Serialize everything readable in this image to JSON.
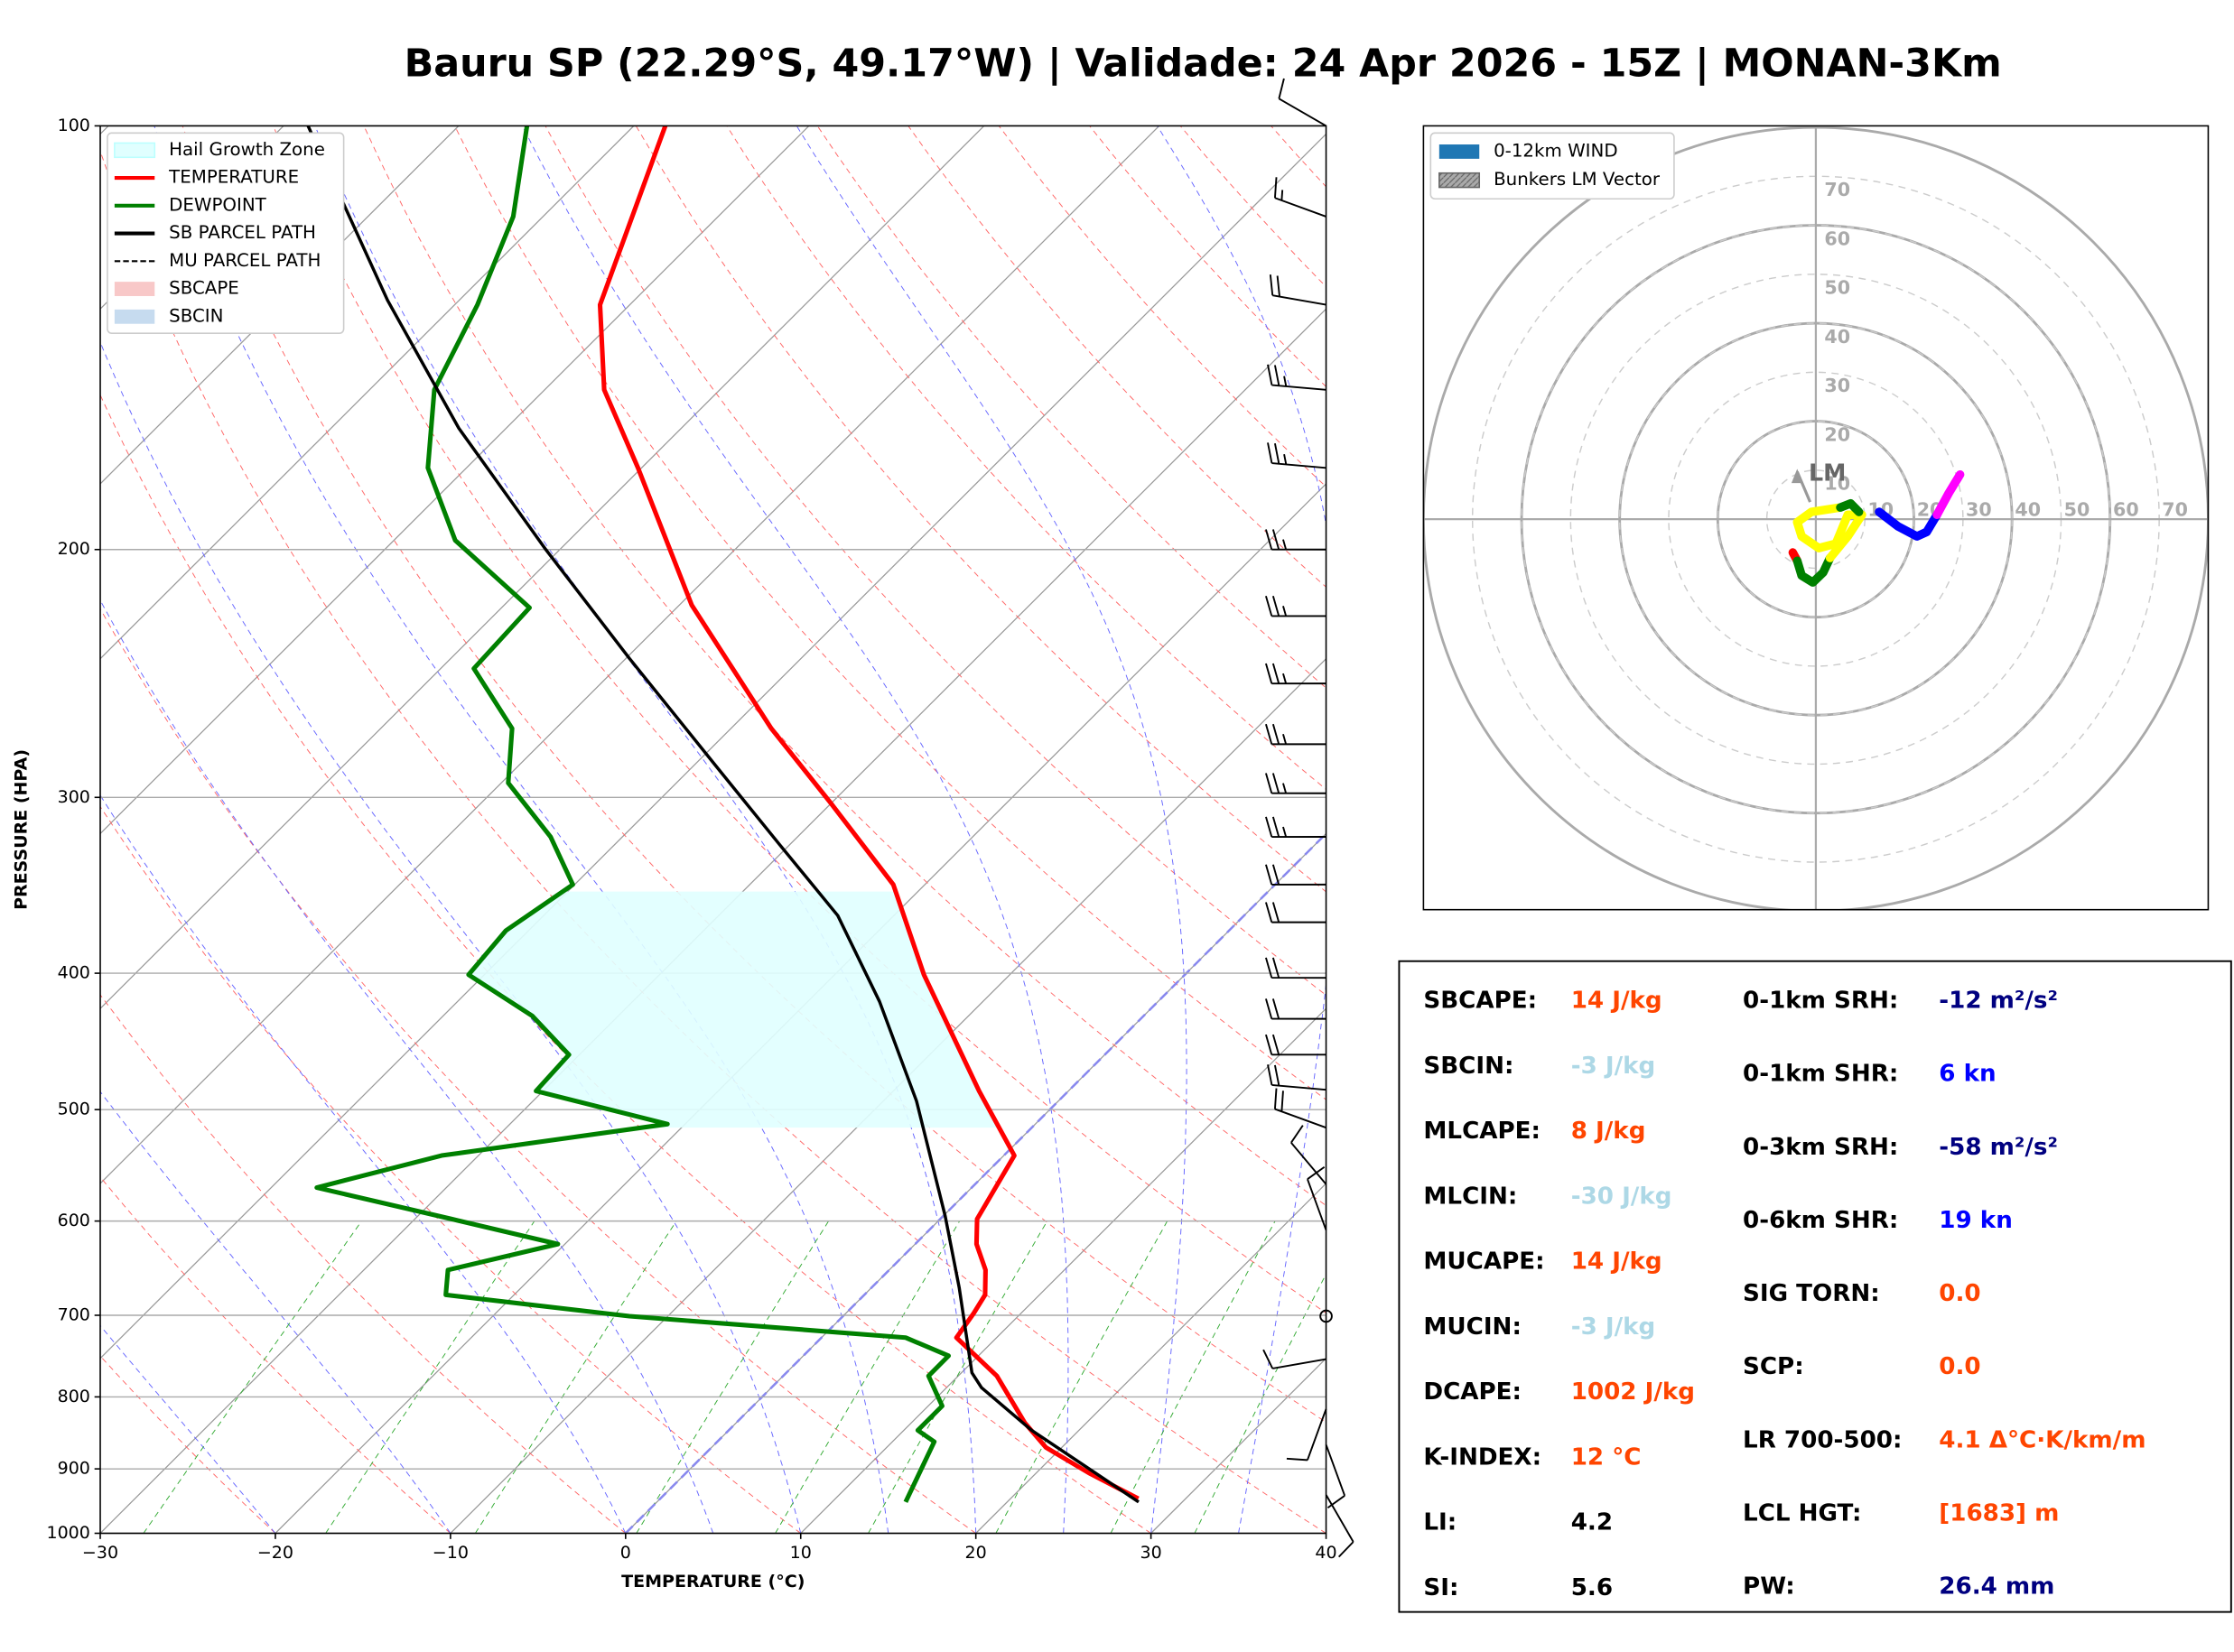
{
  "chart_data": [
    {
      "type": "skewt",
      "title": "Bauru SP (22.29°S, 49.17°W) | Validade: 24 Apr 2026 - 15Z | MONAN-3Km",
      "xlabel": "TEMPERATURE (°C)",
      "ylabel": "PRESSURE (HPA)",
      "xlim": [
        -30,
        40
      ],
      "ylim": [
        1000,
        100
      ],
      "log_scale": true,
      "grid": true,
      "legend": "upper left",
      "xticks": [
        {
          "value": -30,
          "label": "−30"
        },
        {
          "value": -20,
          "label": "−20"
        },
        {
          "value": -10,
          "label": "−10"
        },
        0,
        10,
        20,
        30,
        40
      ],
      "yticks": [
        100,
        200,
        300,
        400,
        500,
        600,
        700,
        800,
        900,
        1000
      ],
      "series": [
        {
          "name": "Hail Growth Zone",
          "color": "#e0ffff",
          "style": "fill",
          "pressure_range": [
            515,
            350
          ]
        },
        {
          "name": "TEMPERATURE",
          "color": "#ff0000",
          "style": "line",
          "pressure": [
            945,
            906,
            869,
            835,
            773,
            726,
            698,
            677,
            650,
            623,
            598,
            539,
            485,
            401,
            346,
            303,
            268,
            219,
            175,
            154,
            134,
            100
          ],
          "temperature": [
            27.3,
            23.0,
            19.1,
            16.5,
            12.2,
            7.7,
            7.3,
            6.9,
            5.5,
            3.5,
            2.1,
            0.6,
            -5.1,
            -14.9,
            -21.8,
            -30,
            -37.7,
            -49.3,
            -60.2,
            -66.6,
            -71.7,
            -78.2
          ]
        },
        {
          "name": "DEWPOINT",
          "color": "#008000",
          "style": "line",
          "pressure": [
            950,
            861,
            845,
            812,
            773,
            748,
            726,
            701,
            677,
            650,
            623,
            598,
            568,
            539,
            512,
            485,
            457,
            429,
            401,
            373,
            346,
            320,
            293,
            268,
            243,
            220,
            197,
            175,
            154,
            134,
            116,
            100
          ],
          "temperature": [
            14.2,
            12.4,
            10.8,
            10.8,
            8.3,
            8.3,
            4.8,
            -12.2,
            -23.9,
            -25.2,
            -20.4,
            -27.9,
            -37.4,
            -32.1,
            -21.0,
            -30.4,
            -30.6,
            -34.9,
            -40.9,
            -41.3,
            -40.1,
            -44.1,
            -49.6,
            -52.5,
            -58.1,
            -58.4,
            -66.5,
            -72.2,
            -76.3,
            -78.7,
            -81.7,
            -86.1
          ]
        },
        {
          "name": "SB PARCEL PATH",
          "color": "#000000",
          "style": "line",
          "pressure": [
            950,
            845,
            788,
            769,
            669,
            595,
            493,
            419,
            364,
            324,
            285,
            239,
            200,
            164,
            133,
            100
          ],
          "temperature": [
            27.5,
            17.3,
            12.0,
            10.6,
            5.0,
            0.1,
            -8.1,
            -15.9,
            -23.2,
            -30.6,
            -38.7,
            -49.8,
            -60.8,
            -72.7,
            -84.1,
            -98.6
          ]
        },
        {
          "name": "MU PARCEL PATH",
          "color": "#000000",
          "style": "dashed"
        },
        {
          "name": "SBCAPE",
          "color": "#f8c8c8",
          "style": "fill"
        },
        {
          "name": "SBCIN",
          "color": "#c6dbef",
          "style": "fill"
        }
      ],
      "wind_barbs": {
        "pressure": [
          100,
          116,
          134,
          154,
          175,
          200,
          223,
          249,
          275,
          298,
          320,
          346,
          368,
          403,
          431,
          457,
          484,
          515,
          565,
          609,
          701,
          752,
          816,
          865,
          939
        ],
        "speed": [
          10,
          15,
          20,
          25,
          25,
          25,
          25,
          25,
          25,
          25,
          25,
          20,
          20,
          20,
          20,
          20,
          20,
          20,
          10,
          10,
          0,
          10,
          10,
          10,
          10
        ],
        "direction": [
          300,
          290,
          280,
          275,
          275,
          270,
          270,
          270,
          270,
          270,
          270,
          270,
          270,
          270,
          270,
          270,
          275,
          290,
          320,
          340,
          0,
          260,
          200,
          160,
          150
        ]
      }
    },
    {
      "type": "hodograph",
      "rlim": [
        0,
        80
      ],
      "rticks": [
        10,
        20,
        30,
        40,
        50,
        60,
        70
      ],
      "legend": [
        {
          "name": "0-12km WIND",
          "color": "#1f77b4"
        },
        {
          "name": "Bunkers LM Vector",
          "color": "#aaaaaa"
        }
      ],
      "series": [
        {
          "color": "#ff0000",
          "u": [
            -4.7,
            -3.8
          ],
          "v": [
            -6.8,
            -8.5
          ]
        },
        {
          "color": "#008000",
          "u": [
            -3.8,
            -2.9,
            -0.6,
            1.5,
            2.9
          ],
          "v": [
            -8.5,
            -11.5,
            -12.9,
            -10.9,
            -7.9
          ]
        },
        {
          "color": "#ffff00",
          "u": [
            2.9,
            6.5,
            9.4,
            6.5,
            4.1,
            0.6,
            -2.9,
            -3.8,
            -0.9,
            5.0
          ],
          "v": [
            -7.9,
            -3.5,
            0.9,
            0.9,
            -5.0,
            -5.9,
            -3.5,
            -0.6,
            1.5,
            2.4
          ]
        },
        {
          "color": "#008000",
          "u": [
            5.0,
            7.1,
            8.8
          ],
          "v": [
            2.4,
            3.2,
            1.5
          ]
        },
        {
          "color": "#0000ff",
          "u": [
            12.9,
            16.8,
            20.6,
            22.6,
            24.7
          ],
          "v": [
            1.5,
            -1.5,
            -3.5,
            -2.6,
            0.9
          ]
        },
        {
          "color": "#ff00ff",
          "u": [
            24.7,
            27.1,
            29.4
          ],
          "v": [
            0.9,
            5.3,
            9.1
          ]
        }
      ],
      "bunkers_lm": {
        "u": -3.8,
        "v": 9.7,
        "label": "LM"
      }
    }
  ],
  "table": {
    "left": [
      {
        "label": "SBCAPE:",
        "value": "14 J/kg",
        "color": "#ff4500"
      },
      {
        "label": "SBCIN:",
        "value": "-3 J/kg",
        "color": "#add8e6"
      },
      {
        "label": "MLCAPE:",
        "value": "8 J/kg",
        "color": "#ff4500"
      },
      {
        "label": "MLCIN:",
        "value": "-30 J/kg",
        "color": "#add8e6"
      },
      {
        "label": "MUCAPE:",
        "value": "14 J/kg",
        "color": "#ff4500"
      },
      {
        "label": "MUCIN:",
        "value": "-3 J/kg",
        "color": "#add8e6"
      },
      {
        "label": "DCAPE:",
        "value": "1002 J/kg",
        "color": "#ff4500"
      },
      {
        "label": "K-INDEX:",
        "value": "12 °C",
        "color": "#ff4500"
      },
      {
        "label": "LI:",
        "value": "4.2",
        "color": "#000000"
      },
      {
        "label": "SI:",
        "value": "5.6",
        "color": "#000000"
      }
    ],
    "right": [
      {
        "label": "0-1km SRH:",
        "value": "-12 m²/s²",
        "color": "#000080"
      },
      {
        "label": "0-1km SHR:",
        "value": "6 kn",
        "color": "#0000ff"
      },
      {
        "label": "0-3km SRH:",
        "value": "-58 m²/s²",
        "color": "#000080"
      },
      {
        "label": "0-6km SHR:",
        "value": "19 kn",
        "color": "#0000ff"
      },
      {
        "label": "SIG TORN:",
        "value": "0.0",
        "color": "#ff4500"
      },
      {
        "label": "SCP:",
        "value": "0.0",
        "color": "#ff4500"
      },
      {
        "label": "LR 700-500:",
        "value": "4.1 Δ°C·K/km/m",
        "color": "#ff4500"
      },
      {
        "label": "LCL HGT:",
        "value": "[1683] m",
        "color": "#ff4500"
      },
      {
        "label": "PW:",
        "value": "26.4 mm",
        "color": "#000080"
      }
    ]
  }
}
